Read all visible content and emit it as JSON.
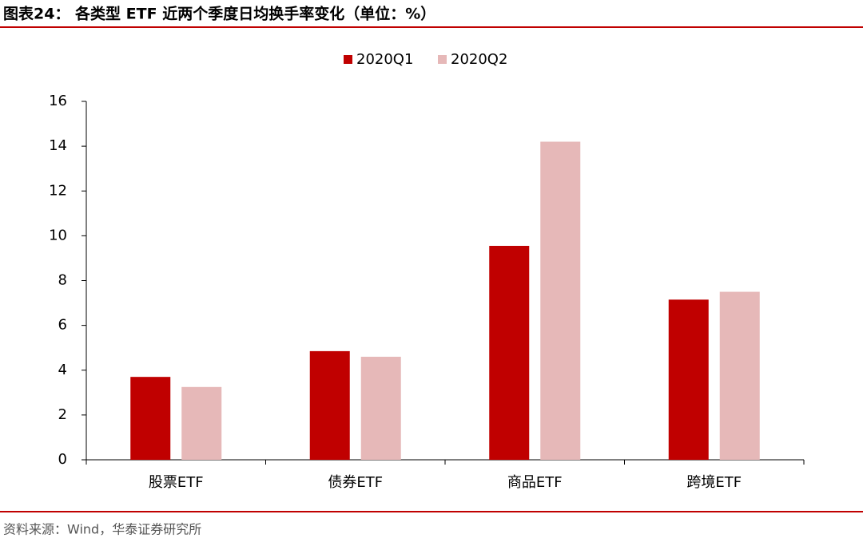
{
  "chart_data": {
    "type": "bar",
    "title": "图表24： 各类型 ETF 近两个季度日均换手率变化（单位：%）",
    "source": "资料来源：Wind，华泰证券研究所",
    "categories": [
      "股票ETF",
      "债券ETF",
      "商品ETF",
      "跨境ETF"
    ],
    "series": [
      {
        "name": "2020Q1",
        "color": "#c00000",
        "values": [
          3.7,
          4.85,
          9.55,
          7.15
        ]
      },
      {
        "name": "2020Q2",
        "color": "#e6b8b8",
        "values": [
          3.25,
          4.6,
          14.2,
          7.5
        ]
      }
    ],
    "ylim": [
      0,
      16
    ],
    "yticks": [
      0,
      2,
      4,
      6,
      8,
      10,
      12,
      14,
      16
    ],
    "grid": false,
    "legend": "top"
  }
}
